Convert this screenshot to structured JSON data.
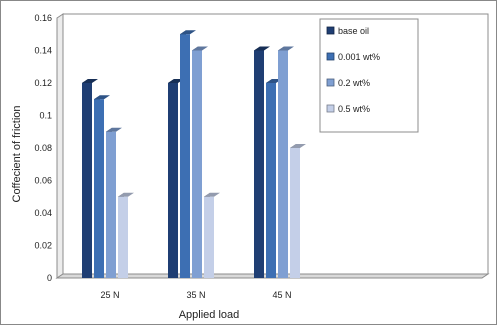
{
  "chart_data": {
    "type": "bar",
    "categories": [
      "25 N",
      "35 N",
      "45 N"
    ],
    "series": [
      {
        "name": "base oil",
        "values": [
          0.12,
          0.12,
          0.14
        ],
        "color": "#1f3e73"
      },
      {
        "name": "0.001 wt%",
        "values": [
          0.11,
          0.15,
          0.12
        ],
        "color": "#3d6fb3"
      },
      {
        "name": "0.2 wt%",
        "values": [
          0.09,
          0.14,
          0.14
        ],
        "color": "#7f9fd2"
      },
      {
        "name": "0.5 wt%",
        "values": [
          0.05,
          0.05,
          0.08
        ],
        "color": "#c4cfe8"
      }
    ],
    "y_ticks": [
      "0",
      "0.02",
      "0.04",
      "0.06",
      "0.08",
      "0.1",
      "0.12",
      "0.14",
      "0.16"
    ],
    "xlabel": "Applied load",
    "ylabel": "Coffecient of friction",
    "ylim": [
      0,
      0.16
    ],
    "grid": false,
    "legend_position": "top-right"
  }
}
